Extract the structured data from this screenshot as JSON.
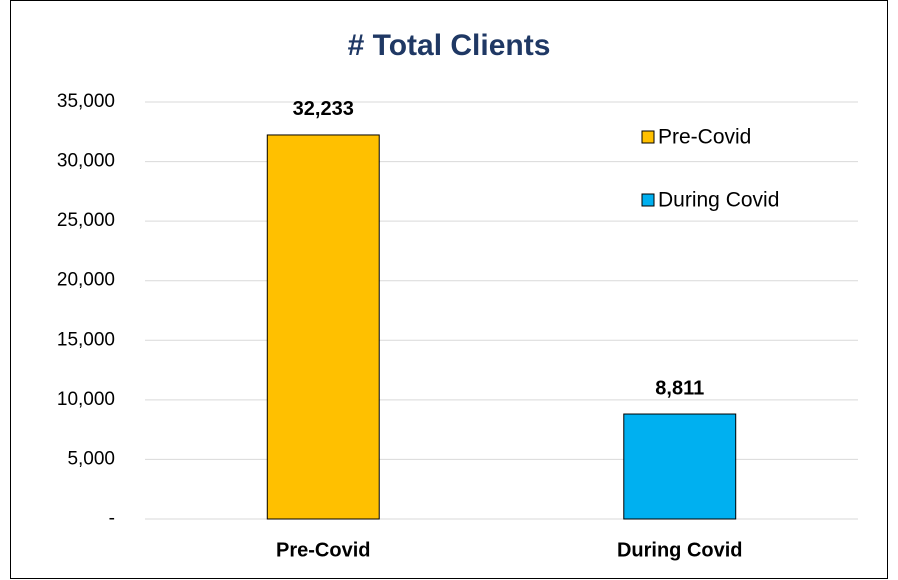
{
  "chart_data": {
    "type": "bar",
    "title": "# Total Clients",
    "categories": [
      "Pre-Covid",
      "During Covid"
    ],
    "values": [
      32233,
      8811
    ],
    "value_labels": [
      "32,233",
      "8,811"
    ],
    "colors": [
      "#ffc000",
      "#00b0f0"
    ],
    "ylim": [
      0,
      35000
    ],
    "yticks": [
      {
        "value": 0,
        "label": "-"
      },
      {
        "value": 5000,
        "label": "5,000"
      },
      {
        "value": 10000,
        "label": "10,000"
      },
      {
        "value": 15000,
        "label": "15,000"
      },
      {
        "value": 20000,
        "label": "20,000"
      },
      {
        "value": 25000,
        "label": "25,000"
      },
      {
        "value": 30000,
        "label": "30,000"
      },
      {
        "value": 35000,
        "label": "35,000"
      }
    ],
    "grid": true,
    "legend": "upper-right"
  }
}
